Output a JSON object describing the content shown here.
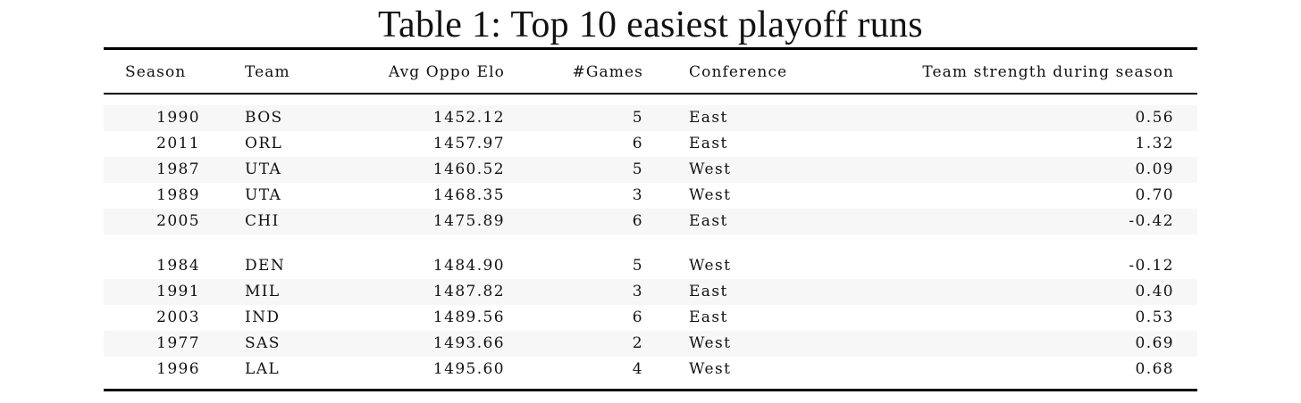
{
  "caption": "Table 1: Top 10 easiest playoff runs",
  "table": {
    "headers": {
      "season": "Season",
      "team": "Team",
      "elo": "Avg Oppo Elo",
      "games": "#Games",
      "conference": "Conference",
      "strength": "Team strength during season"
    },
    "rows": [
      {
        "season": "1990",
        "team": "BOS",
        "elo": "1452.12",
        "games": "5",
        "conference": "East",
        "strength": "0.56"
      },
      {
        "season": "2011",
        "team": "ORL",
        "elo": "1457.97",
        "games": "6",
        "conference": "East",
        "strength": "1.32"
      },
      {
        "season": "1987",
        "team": "UTA",
        "elo": "1460.52",
        "games": "5",
        "conference": "West",
        "strength": "0.09"
      },
      {
        "season": "1989",
        "team": "UTA",
        "elo": "1468.35",
        "games": "3",
        "conference": "West",
        "strength": "0.70"
      },
      {
        "season": "2005",
        "team": "CHI",
        "elo": "1475.89",
        "games": "6",
        "conference": "East",
        "strength": "-0.42"
      },
      {
        "season": "1984",
        "team": "DEN",
        "elo": "1484.90",
        "games": "5",
        "conference": "West",
        "strength": "-0.12"
      },
      {
        "season": "1991",
        "team": "MIL",
        "elo": "1487.82",
        "games": "3",
        "conference": "East",
        "strength": "0.40"
      },
      {
        "season": "2003",
        "team": "IND",
        "elo": "1489.56",
        "games": "6",
        "conference": "East",
        "strength": "0.53"
      },
      {
        "season": "1977",
        "team": "SAS",
        "elo": "1493.66",
        "games": "2",
        "conference": "West",
        "strength": "0.69"
      },
      {
        "season": "1996",
        "team": "LAL",
        "elo": "1495.60",
        "games": "4",
        "conference": "West",
        "strength": "0.68"
      }
    ]
  }
}
